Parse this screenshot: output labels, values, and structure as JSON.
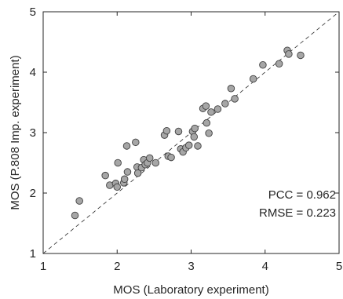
{
  "chart_data": {
    "type": "scatter",
    "xlabel": "MOS (Laboratory experiment)",
    "ylabel": "MOS (P.808 Imp. experiment)",
    "xlim": [
      1,
      5
    ],
    "ylim": [
      1,
      5
    ],
    "xticks": [
      "1",
      "2",
      "3",
      "4",
      "5"
    ],
    "yticks": [
      "1",
      "2",
      "3",
      "4",
      "5"
    ],
    "grid": false,
    "reference_line": "identity (y = x), dashed",
    "annotations": [
      "PCC = 0.962",
      "RMSE = 0.223"
    ],
    "annotation_placement": "bottom-right",
    "series": [
      {
        "color": "#a6a6a6",
        "points": [
          [
            1.43,
            1.63
          ],
          [
            1.49,
            1.87
          ],
          [
            1.84,
            2.29
          ],
          [
            1.9,
            2.13
          ],
          [
            1.98,
            2.16
          ],
          [
            2.0,
            2.1
          ],
          [
            2.01,
            2.5
          ],
          [
            2.09,
            2.17
          ],
          [
            2.1,
            2.23
          ],
          [
            2.13,
            2.78
          ],
          [
            2.14,
            2.35
          ],
          [
            2.25,
            2.84
          ],
          [
            2.27,
            2.43
          ],
          [
            2.28,
            2.33
          ],
          [
            2.33,
            2.42
          ],
          [
            2.36,
            2.55
          ],
          [
            2.38,
            2.47
          ],
          [
            2.41,
            2.5
          ],
          [
            2.44,
            2.58
          ],
          [
            2.52,
            2.5
          ],
          [
            2.64,
            2.96
          ],
          [
            2.67,
            3.03
          ],
          [
            2.69,
            2.61
          ],
          [
            2.73,
            2.59
          ],
          [
            2.83,
            3.02
          ],
          [
            2.86,
            2.73
          ],
          [
            2.89,
            2.68
          ],
          [
            2.93,
            2.75
          ],
          [
            2.97,
            2.79
          ],
          [
            3.02,
            3.02
          ],
          [
            3.05,
            3.07
          ],
          [
            3.04,
            2.93
          ],
          [
            3.09,
            2.78
          ],
          [
            3.16,
            3.4
          ],
          [
            3.2,
            3.44
          ],
          [
            3.21,
            3.16
          ],
          [
            3.24,
            2.99
          ],
          [
            3.27,
            3.34
          ],
          [
            3.36,
            3.39
          ],
          [
            3.46,
            3.48
          ],
          [
            3.54,
            3.73
          ],
          [
            3.59,
            3.56
          ],
          [
            3.84,
            3.89
          ],
          [
            3.97,
            4.12
          ],
          [
            4.19,
            4.14
          ],
          [
            4.3,
            4.36
          ],
          [
            4.32,
            4.3
          ],
          [
            4.48,
            4.28
          ]
        ]
      }
    ]
  }
}
